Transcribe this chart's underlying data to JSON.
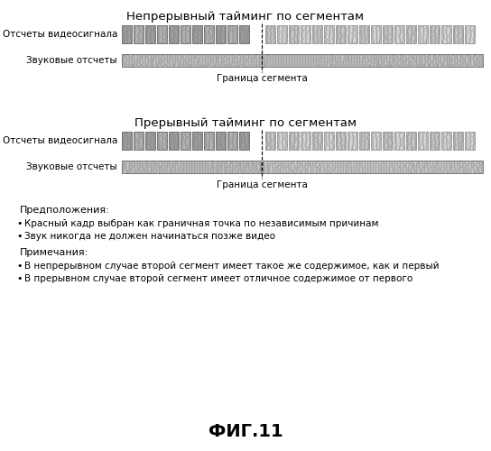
{
  "title1": "Непрерывный тайминг по сегментам",
  "title2": "Прерывный тайминг по сегментам",
  "label_video": "Отсчеты видеосигнала",
  "label_audio": "Звуковые отсчеты",
  "label_boundary": "Граница сегмента",
  "assumptions_header": "Предположения:",
  "assumptions": [
    "Красный кадр выбран как граничная точка по независимым причинам",
    "Звук никогда не должен начинаться позже видео"
  ],
  "notes_header": "Примечания:",
  "notes": [
    "В непрерывном случае второй сегмент имеет такое же содержимое, как и первый",
    "В прерывном случае второй сегмент имеет отличное содержимое от первого"
  ],
  "fig_label": "ФИГ.11",
  "bg": "#ffffff",
  "block_dark": "#a0a0a0",
  "block_light": "#c8c8c8",
  "audio_fill": "#c8c8c8",
  "border_color": "#666666"
}
